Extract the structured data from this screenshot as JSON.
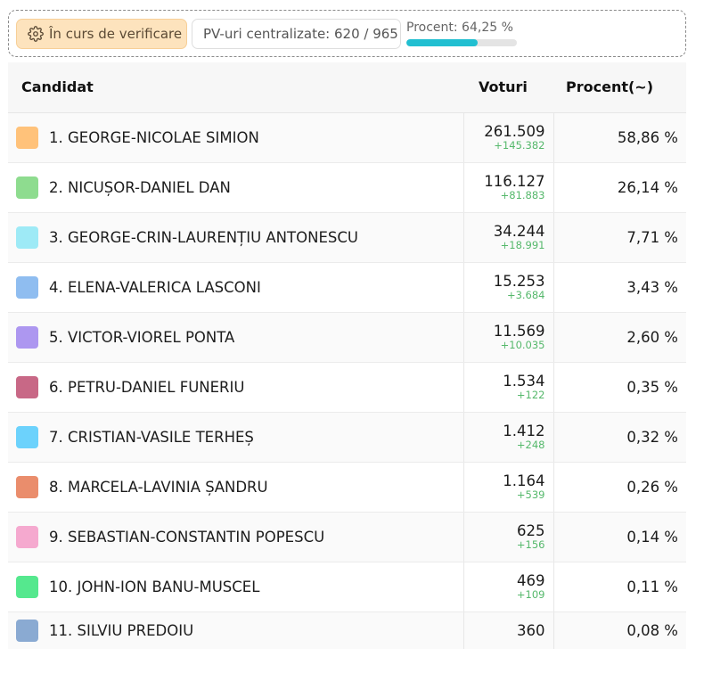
{
  "status": {
    "verifying_label": "În curs de verificare",
    "pv_label": "PV-uri centralizate: 620 / 965",
    "progress_label": "Procent: 64,25 %",
    "progress_fraction": 0.6425
  },
  "table": {
    "headers": {
      "candidate": "Candidat",
      "votes": "Voturi",
      "percent": "Procent(~)"
    },
    "rows": [
      {
        "name": "1. GEORGE-NICOLAE SIMION",
        "votes": "261.509",
        "delta": "+145.382",
        "percent": "58,86 %",
        "color": "#ffc27a"
      },
      {
        "name": "2. NICUȘOR-DANIEL DAN",
        "votes": "116.127",
        "delta": "+81.883",
        "percent": "26,14 %",
        "color": "#8edc8f"
      },
      {
        "name": "3. GEORGE-CRIN-LAURENȚIU ANTONESCU",
        "votes": "34.244",
        "delta": "+18.991",
        "percent": "7,71 %",
        "color": "#9eeaf6"
      },
      {
        "name": "4. ELENA-VALERICA LASCONI",
        "votes": "15.253",
        "delta": "+3.684",
        "percent": "3,43 %",
        "color": "#8fbdf0"
      },
      {
        "name": "5. VICTOR-VIOREL PONTA",
        "votes": "11.569",
        "delta": "+10.035",
        "percent": "2,60 %",
        "color": "#ad97f0"
      },
      {
        "name": "6. PETRU-DANIEL FUNERIU",
        "votes": "1.534",
        "delta": "+122",
        "percent": "0,35 %",
        "color": "#c86886"
      },
      {
        "name": "7. CRISTIAN-VASILE TERHEȘ",
        "votes": "1.412",
        "delta": "+248",
        "percent": "0,32 %",
        "color": "#6cd2fc"
      },
      {
        "name": "8. MARCELA-LAVINIA ȘANDRU",
        "votes": "1.164",
        "delta": "+539",
        "percent": "0,26 %",
        "color": "#ea8d6c"
      },
      {
        "name": "9. SEBASTIAN-CONSTANTIN POPESCU",
        "votes": "625",
        "delta": "+156",
        "percent": "0,14 %",
        "color": "#f5a9cf"
      },
      {
        "name": "10. JOHN-ION BANU-MUSCEL",
        "votes": "469",
        "delta": "+109",
        "percent": "0,11 %",
        "color": "#55e88e"
      },
      {
        "name": "11. SILVIU PREDOIU",
        "votes": "360",
        "delta": "",
        "percent": "0,08 %",
        "color": "#8aaad2"
      }
    ]
  }
}
